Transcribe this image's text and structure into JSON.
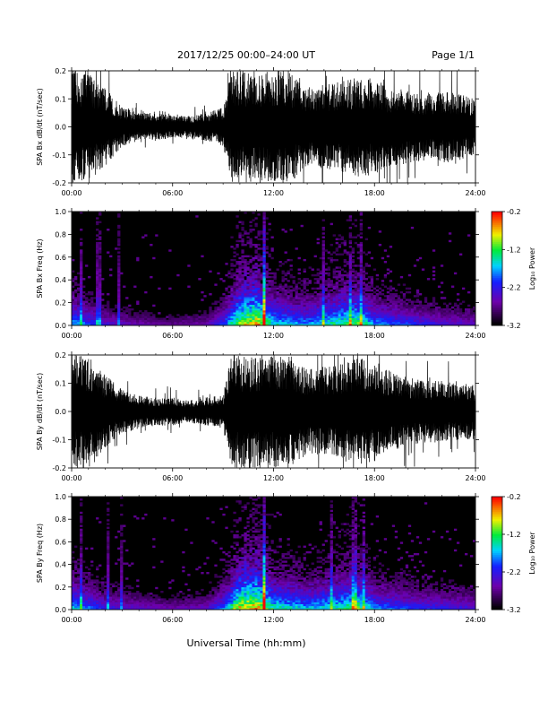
{
  "header": {
    "title": "2017/12/25  00:00–24:00 UT",
    "page": "Page 1/1"
  },
  "xlabel": "Universal Time (hh:mm)",
  "x_ticks": [
    "00:00",
    "06:00",
    "12:00",
    "18:00",
    "24:00"
  ],
  "colorbar": {
    "label": "Log₁₀ Power",
    "ticks": [
      "-0.2",
      "-1.2",
      "-2.2",
      "-3.2"
    ]
  },
  "chart_data": [
    {
      "type": "line",
      "name": "bx-time-series",
      "ylabel": "SPA Bx dB/dt (nT/sec)",
      "xlim": [
        0,
        24
      ],
      "ylim": [
        -0.2,
        0.2
      ],
      "yticks": [
        "0.2",
        "0.1",
        "0.0",
        "-0.1",
        "-0.2"
      ],
      "envelope_hours": [
        0,
        1,
        2,
        3,
        4,
        5,
        6,
        7,
        8,
        9,
        9.5,
        10,
        11,
        12,
        13,
        14,
        15,
        16,
        17,
        18,
        19,
        20,
        21,
        22,
        23,
        24
      ],
      "envelope_amplitude": [
        0.2,
        0.2,
        0.14,
        0.07,
        0.05,
        0.05,
        0.04,
        0.04,
        0.05,
        0.07,
        0.2,
        0.2,
        0.2,
        0.2,
        0.2,
        0.14,
        0.15,
        0.16,
        0.18,
        0.17,
        0.14,
        0.13,
        0.12,
        0.13,
        0.12,
        0.1
      ]
    },
    {
      "type": "heatmap",
      "name": "bx-spectrogram",
      "ylabel": "SPA Bx Freq (Hz)",
      "xlim": [
        0,
        24
      ],
      "ylim": [
        0,
        1
      ],
      "yticks": [
        "1.0",
        "0.8",
        "0.6",
        "0.4",
        "0.2",
        "0.0"
      ],
      "zlim": [
        -3.2,
        -0.2
      ],
      "activity_hours": [
        0,
        2,
        4,
        6,
        8,
        9,
        10,
        11,
        12,
        14,
        16,
        17,
        18,
        20,
        22,
        24
      ],
      "activity_level": [
        0.6,
        0.35,
        0.25,
        0.2,
        0.25,
        0.45,
        0.9,
        1.0,
        0.65,
        0.55,
        0.75,
        0.8,
        0.55,
        0.45,
        0.35,
        0.3
      ],
      "line_hours": [
        0.6,
        1.6,
        2.8,
        11.4,
        15.0,
        16.5,
        17.2
      ]
    },
    {
      "type": "line",
      "name": "by-time-series",
      "ylabel": "SPA By dB/dt (nT/sec)",
      "xlim": [
        0,
        24
      ],
      "ylim": [
        -0.2,
        0.2
      ],
      "yticks": [
        "0.2",
        "0.1",
        "0.0",
        "-0.1",
        "-0.2"
      ],
      "envelope_hours": [
        0,
        1,
        2,
        3,
        4,
        5,
        6,
        7,
        8,
        9,
        9.5,
        10,
        11,
        12,
        13,
        14,
        15,
        16,
        17,
        18,
        19,
        20,
        21,
        22,
        23,
        24
      ],
      "envelope_amplitude": [
        0.2,
        0.2,
        0.13,
        0.08,
        0.06,
        0.05,
        0.05,
        0.04,
        0.05,
        0.06,
        0.2,
        0.2,
        0.2,
        0.2,
        0.2,
        0.15,
        0.16,
        0.17,
        0.19,
        0.18,
        0.14,
        0.12,
        0.11,
        0.11,
        0.1,
        0.1
      ]
    },
    {
      "type": "heatmap",
      "name": "by-spectrogram",
      "ylabel": "SPA By Freq (Hz)",
      "xlim": [
        0,
        24
      ],
      "ylim": [
        0,
        1
      ],
      "yticks": [
        "1.0",
        "0.8",
        "0.6",
        "0.4",
        "0.2",
        "0.0"
      ],
      "zlim": [
        -3.2,
        -0.2
      ],
      "activity_hours": [
        0,
        2,
        4,
        6,
        8,
        9,
        10,
        11,
        12,
        14,
        16,
        17,
        18,
        20,
        22,
        24
      ],
      "activity_level": [
        0.65,
        0.4,
        0.3,
        0.25,
        0.3,
        0.5,
        0.95,
        1.0,
        0.7,
        0.6,
        0.7,
        0.8,
        0.55,
        0.45,
        0.4,
        0.35
      ],
      "line_hours": [
        0.6,
        2.2,
        2.9,
        11.4,
        15.4,
        16.8,
        17.3
      ]
    }
  ]
}
